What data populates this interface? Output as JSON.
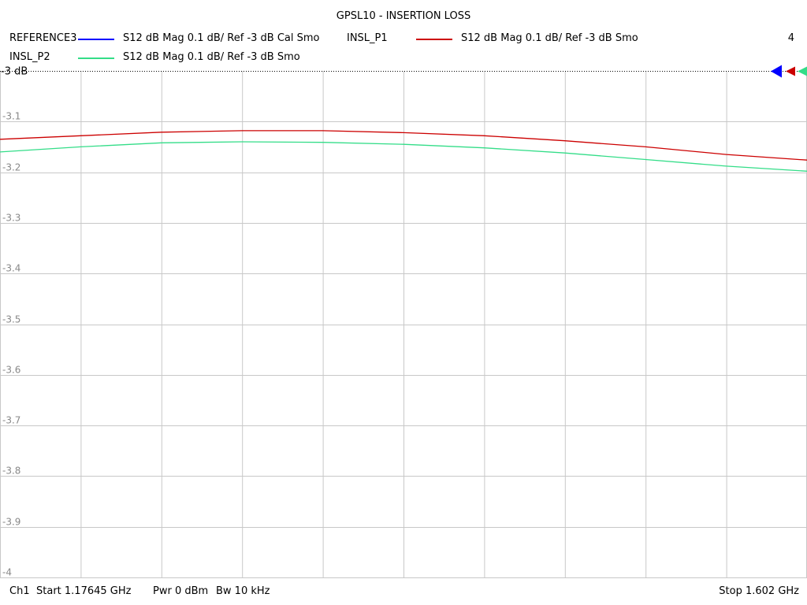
{
  "chart_data": {
    "type": "line",
    "title": "GPSL10 - INSERTION LOSS",
    "count_label": "4",
    "ref_label": "-3 dB",
    "ylim": [
      -4,
      -3
    ],
    "y_ticks": [
      -3.1,
      -3.2,
      -3.3,
      -3.4,
      -3.5,
      -3.6,
      -3.7,
      -3.8,
      -3.9,
      -4
    ],
    "y_tick_labels": [
      "-3.1",
      "-3.2",
      "-3.3",
      "-3.4",
      "-3.5",
      "-3.6",
      "-3.7",
      "-3.8",
      "-3.9",
      "-4"
    ],
    "x_divisions": 10,
    "grid": true,
    "series": [
      {
        "name": "REFERENCE3",
        "desc": "S12  dB Mag  0.1 dB/ Ref -3 dB  Cal Smo",
        "color": "#0000ff",
        "values": []
      },
      {
        "name": "INSL_P1",
        "desc": "S12  dB Mag  0.1 dB/ Ref -3 dB  Smo",
        "color": "#cc0000",
        "values": [
          -3.135,
          -3.128,
          -3.121,
          -3.118,
          -3.118,
          -3.122,
          -3.128,
          -3.138,
          -3.15,
          -3.165,
          -3.176
        ]
      },
      {
        "name": "INSL_P2",
        "desc": "S12  dB Mag  0.1 dB/ Ref -3 dB  Smo",
        "color": "#33dd88",
        "values": [
          -3.16,
          -3.15,
          -3.142,
          -3.14,
          -3.141,
          -3.145,
          -3.152,
          -3.162,
          -3.175,
          -3.188,
          -3.198
        ]
      }
    ]
  },
  "footer": {
    "channel": "Ch1",
    "start_label": "Start  1.17645 GHz",
    "power": "Pwr  0 dBm",
    "bandwidth": "Bw  10 kHz",
    "stop_label": "Stop  1.602 GHz"
  }
}
